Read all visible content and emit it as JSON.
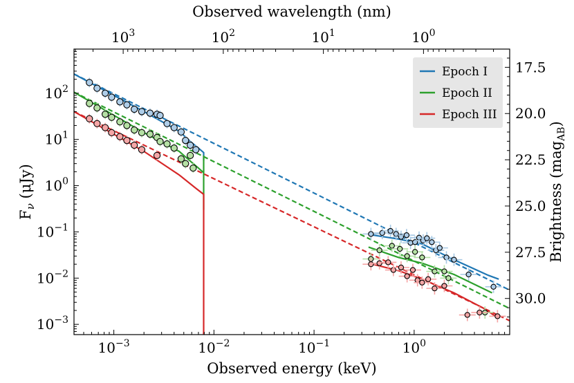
{
  "chart_data": {
    "type": "scatter",
    "title": "",
    "xlabel": "Observed energy (keV)",
    "ylabel": "F_ν (μJy)",
    "ylabel_parts": {
      "main": "F",
      "sub": "ν",
      "rest": " (μJy)"
    },
    "top_xlabel": "Observed wavelength (nm)",
    "right_ylabel": "Brightness (mag_AB)",
    "right_ylabel_parts": {
      "main": "Brightness (mag",
      "sub": "AB",
      "rest": ")"
    },
    "x_scale": "log",
    "y_scale": "log",
    "xlim": [
      0.0004,
      9
    ],
    "ylim": [
      0.0006,
      900
    ],
    "x_ticks": [
      {
        "value": 0.001,
        "label": "10",
        "exp": "−3"
      },
      {
        "value": 0.01,
        "label": "10",
        "exp": "−2"
      },
      {
        "value": 0.1,
        "label": "10",
        "exp": "−1"
      },
      {
        "value": 1,
        "label": "10",
        "exp": "0"
      }
    ],
    "y_ticks": [
      {
        "value": 0.001,
        "label": "10",
        "exp": "−3"
      },
      {
        "value": 0.01,
        "label": "10",
        "exp": "−2"
      },
      {
        "value": 0.1,
        "label": "10",
        "exp": "−1"
      },
      {
        "value": 1,
        "label": "10",
        "exp": "0"
      },
      {
        "value": 10,
        "label": "10",
        "exp": "1"
      },
      {
        "value": 100,
        "label": "10",
        "exp": "2"
      }
    ],
    "top_ticks": [
      {
        "value": 1000,
        "label": "10",
        "exp": "3"
      },
      {
        "value": 100,
        "label": "10",
        "exp": "2"
      },
      {
        "value": 10,
        "label": "10",
        "exp": "1"
      },
      {
        "value": 1,
        "label": "10",
        "exp": "0"
      }
    ],
    "right_ticks": [
      {
        "value": 17.5,
        "label": "17.5"
      },
      {
        "value": 20.0,
        "label": "20.0"
      },
      {
        "value": 22.5,
        "label": "22.5"
      },
      {
        "value": 25.0,
        "label": "25.0"
      },
      {
        "value": 27.5,
        "label": "27.5"
      },
      {
        "value": 30.0,
        "label": "30.0"
      }
    ],
    "legend_position": "top-right",
    "series": [
      {
        "name": "Epoch I",
        "color": "#1f77b4",
        "light_color": "#a6c8e3",
        "fill": "#aecde8",
        "points_opt": [
          [
            0.00057,
            170
          ],
          [
            0.00068,
            128
          ],
          [
            0.00082,
            100
          ],
          [
            0.00095,
            82
          ],
          [
            0.00115,
            65
          ],
          [
            0.00135,
            56
          ],
          [
            0.0016,
            45
          ],
          [
            0.0019,
            40
          ],
          [
            0.0023,
            37
          ],
          [
            0.0027,
            35
          ],
          [
            0.0029,
            33
          ],
          [
            0.0034,
            22
          ],
          [
            0.004,
            18
          ],
          [
            0.0047,
            14.5
          ],
          [
            0.0052,
            9.5
          ],
          [
            0.0058,
            7.5
          ],
          [
            0.0066,
            6
          ]
        ],
        "points_xray": [
          [
            0.37,
            0.09
          ],
          [
            0.48,
            0.095
          ],
          [
            0.58,
            0.105
          ],
          [
            0.66,
            0.09
          ],
          [
            0.74,
            0.078
          ],
          [
            0.84,
            0.085
          ],
          [
            0.92,
            0.058
          ],
          [
            1.02,
            0.06
          ],
          [
            1.12,
            0.075
          ],
          [
            1.23,
            0.065
          ],
          [
            1.34,
            0.073
          ],
          [
            1.5,
            0.06
          ],
          [
            1.65,
            0.04
          ],
          [
            1.8,
            0.045
          ],
          [
            2.1,
            0.028
          ],
          [
            2.5,
            0.025
          ],
          [
            3.5,
            0.012
          ],
          [
            6.2,
            0.0065
          ]
        ],
        "model_start": [
          0.0004,
          260
        ],
        "model_end": [
          9,
          0.0055
        ],
        "cutoff_curve": [
          [
            0.0004,
            260
          ],
          [
            0.002,
            40
          ],
          [
            0.0045,
            15
          ],
          [
            0.006,
            8.5
          ],
          [
            0.007,
            6.5
          ],
          [
            0.0079,
            5.2
          ],
          [
            0.0079,
            3.5
          ],
          [
            0.0079,
            4.8
          ]
        ],
        "xray_curve": [
          [
            0.35,
            0.088
          ],
          [
            0.7,
            0.07
          ],
          [
            1.2,
            0.055
          ],
          [
            2.5,
            0.025
          ],
          [
            5.5,
            0.0115
          ],
          [
            7,
            0.0095
          ]
        ]
      },
      {
        "name": "Epoch II",
        "color": "#2ca02c",
        "light_color": "#b3e0a6",
        "fill": "#b5e0a4",
        "points_opt": [
          [
            0.00057,
            60
          ],
          [
            0.00068,
            48
          ],
          [
            0.00082,
            35
          ],
          [
            0.00095,
            30
          ],
          [
            0.00115,
            24
          ],
          [
            0.00135,
            20
          ],
          [
            0.0016,
            16
          ],
          [
            0.0019,
            14
          ],
          [
            0.0023,
            13
          ],
          [
            0.0027,
            11
          ],
          [
            0.0029,
            9
          ],
          [
            0.0034,
            8
          ],
          [
            0.004,
            6.5
          ],
          [
            0.0047,
            3.8
          ],
          [
            0.0052,
            3
          ],
          [
            0.0058,
            4.5
          ],
          [
            0.0062,
            2.4
          ]
        ],
        "points_xray": [
          [
            0.37,
            0.026
          ],
          [
            0.45,
            0.04
          ],
          [
            0.6,
            0.05
          ],
          [
            0.72,
            0.043
          ],
          [
            0.85,
            0.03
          ],
          [
            1.02,
            0.037
          ],
          [
            1.2,
            0.028
          ],
          [
            1.6,
            0.014
          ],
          [
            2.0,
            0.014
          ],
          [
            2.2,
            0.01
          ],
          [
            5.1,
            0.0018
          ]
        ],
        "model_start": [
          0.0004,
          105
        ],
        "model_end": [
          9,
          0.0022
        ],
        "cutoff_curve": [
          [
            0.0004,
            105
          ],
          [
            0.002,
            14
          ],
          [
            0.0045,
            5.5
          ],
          [
            0.006,
            3.2
          ],
          [
            0.007,
            2.4
          ],
          [
            0.0079,
            1.9
          ],
          [
            0.0079,
            0.3
          ],
          [
            0.0079,
            4.5
          ]
        ],
        "xray_curve": [
          [
            0.35,
            0.047
          ],
          [
            0.7,
            0.028
          ],
          [
            1.2,
            0.021
          ],
          [
            2.5,
            0.012
          ],
          [
            6,
            0.0048
          ]
        ]
      },
      {
        "name": "Epoch III",
        "color": "#d62728",
        "light_color": "#f5a3a3",
        "fill": "#f4a6a6",
        "points_opt": [
          [
            0.00057,
            28
          ],
          [
            0.00068,
            22
          ],
          [
            0.00082,
            18
          ],
          [
            0.00095,
            14
          ],
          [
            0.00115,
            11.5
          ],
          [
            0.00135,
            9.5
          ],
          [
            0.0016,
            7.5
          ],
          [
            0.0019,
            6
          ],
          [
            0.0027,
            4.5
          ]
        ],
        "points_xray": [
          [
            0.37,
            0.02
          ],
          [
            0.45,
            0.021
          ],
          [
            0.55,
            0.022
          ],
          [
            0.62,
            0.015
          ],
          [
            0.74,
            0.017
          ],
          [
            0.85,
            0.011
          ],
          [
            0.97,
            0.015
          ],
          [
            1.08,
            0.009
          ],
          [
            1.2,
            0.008
          ],
          [
            1.38,
            0.0095
          ],
          [
            1.6,
            0.006
          ],
          [
            2.0,
            0.0068
          ],
          [
            3.4,
            0.0016
          ],
          [
            4.5,
            0.0018
          ],
          [
            6.8,
            0.0015
          ]
        ],
        "model_start": [
          0.0004,
          40
        ],
        "model_end": [
          9,
          0.0012
        ],
        "cutoff_curve": [
          [
            0.0004,
            40
          ],
          [
            0.002,
            5.5
          ],
          [
            0.0045,
            1.7
          ],
          [
            0.0065,
            0.9
          ],
          [
            0.0079,
            0.65
          ],
          [
            0.0079,
            0.0006
          ]
        ],
        "xray_curve": [
          [
            0.35,
            0.021
          ],
          [
            0.7,
            0.0145
          ],
          [
            1.2,
            0.0095
          ],
          [
            2.5,
            0.0048
          ],
          [
            5,
            0.0022
          ],
          [
            6.5,
            0.0015
          ]
        ]
      }
    ]
  }
}
